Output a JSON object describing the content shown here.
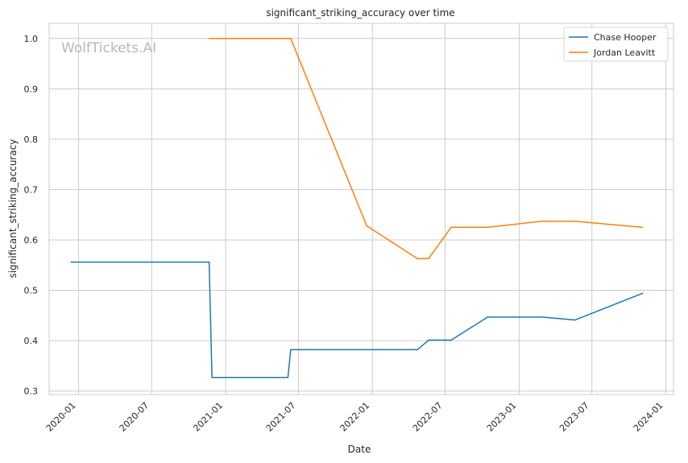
{
  "watermark": "WolfTickets.AI",
  "chart_data": {
    "type": "line",
    "title": "significant_striking_accuracy over time",
    "xlabel": "Date",
    "ylabel": "significant_striking_accuracy",
    "x_ticks": [
      "2020-01",
      "2020-07",
      "2021-01",
      "2021-07",
      "2022-01",
      "2022-07",
      "2023-01",
      "2023-07",
      "2024-01"
    ],
    "y_ticks": [
      "0.3",
      "0.4",
      "0.5",
      "0.6",
      "0.7",
      "0.8",
      "0.9",
      "1.0"
    ],
    "xlim": [
      "2019-10-20",
      "2024-01-20"
    ],
    "ylim": [
      0.293,
      1.03
    ],
    "grid": true,
    "legend_position": "top-right",
    "series": [
      {
        "name": "Chase Hooper",
        "color": "#1f77b4",
        "x": [
          "2019-12-14",
          "2020-11-21",
          "2020-11-28",
          "2021-06-05",
          "2021-06-12",
          "2022-04-23",
          "2022-05-21",
          "2022-07-16",
          "2022-10-15",
          "2023-02-25",
          "2023-05-20",
          "2023-11-04"
        ],
        "y": [
          0.556,
          0.556,
          0.327,
          0.327,
          0.382,
          0.382,
          0.401,
          0.401,
          0.447,
          0.447,
          0.441,
          0.494
        ]
      },
      {
        "name": "Jordan Leavitt",
        "color": "#ff7f0e",
        "x": [
          "2020-11-21",
          "2020-11-28",
          "2021-06-12",
          "2021-12-18",
          "2022-04-23",
          "2022-05-21",
          "2022-07-16",
          "2022-10-15",
          "2023-02-25",
          "2023-05-20",
          "2023-11-04"
        ],
        "y": [
          1.0,
          1.0,
          1.0,
          0.628,
          0.563,
          0.563,
          0.625,
          0.625,
          0.637,
          0.637,
          0.625
        ]
      }
    ]
  }
}
